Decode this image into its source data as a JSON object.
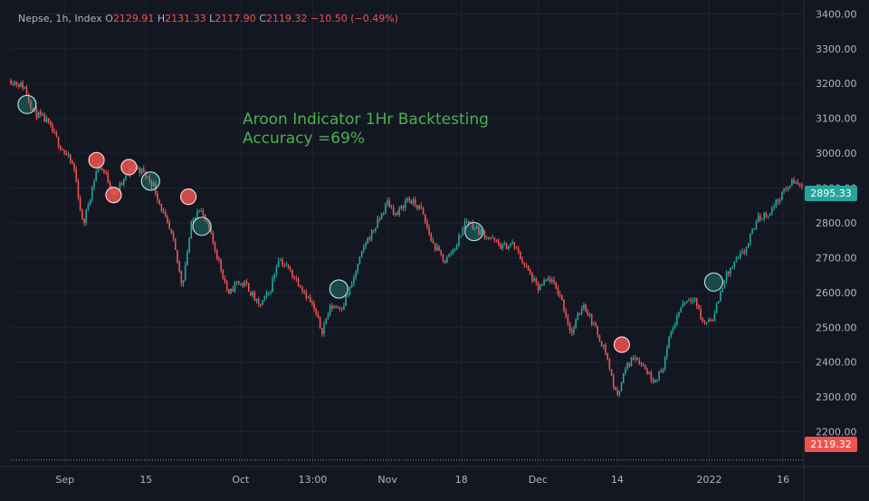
{
  "legend": {
    "symbol": "Nepse, 1h, Index",
    "open_label": "O",
    "open": "2129.91",
    "high_label": "H",
    "high": "2131.33",
    "low_label": "L",
    "low": "2117.90",
    "close_label": "C",
    "close": "2119.32",
    "change": "−10.50 (−0.49%)"
  },
  "annotation": {
    "line1": "Aroon Indicator 1Hr Backtesting",
    "line2": "Accuracy =69%"
  },
  "price_tags": {
    "last": "2895.33",
    "current": "2119.32"
  },
  "colors": {
    "background": "#131722",
    "grid": "#1f2330",
    "up": "#26a69a",
    "down": "#ef5350",
    "annotation": "#4caf50",
    "axis_text": "#b2b5be",
    "tag_green": "#26a69a",
    "tag_red": "#ef5350"
  },
  "chart_data": {
    "type": "candlestick",
    "ylim": [
      2100,
      3440
    ],
    "y_ticks": [
      2200,
      2300,
      2400,
      2500,
      2600,
      2700,
      2800,
      2900,
      3000,
      3100,
      3200,
      3300,
      3400
    ],
    "y_tick_labels": [
      "2200.00",
      "2300.00",
      "2400.00",
      "2500.00",
      "2600.00",
      "2700.00",
      "2800.00",
      "2900.00",
      "3000.00",
      "3100.00",
      "3200.00",
      "3300.00",
      "3400.00"
    ],
    "x_range": [
      0,
      880
    ],
    "x_ticks": [
      {
        "label": "Sep",
        "x": 60
      },
      {
        "label": "15",
        "x": 150
      },
      {
        "label": "Oct",
        "x": 255
      },
      {
        "label": "13:00",
        "x": 335
      },
      {
        "label": "Nov",
        "x": 418
      },
      {
        "label": "18",
        "x": 500
      },
      {
        "label": "Dec",
        "x": 585
      },
      {
        "label": "14",
        "x": 673
      },
      {
        "label": "2022",
        "x": 775
      },
      {
        "label": "16",
        "x": 857
      }
    ],
    "price_path": [
      [
        0,
        3210
      ],
      [
        15,
        3190
      ],
      [
        25,
        3120
      ],
      [
        40,
        3090
      ],
      [
        55,
        3020
      ],
      [
        70,
        2960
      ],
      [
        80,
        2790
      ],
      [
        90,
        2900
      ],
      [
        97,
        2970
      ],
      [
        105,
        2940
      ],
      [
        115,
        2880
      ],
      [
        125,
        2920
      ],
      [
        135,
        2960
      ],
      [
        145,
        2950
      ],
      [
        158,
        2910
      ],
      [
        170,
        2820
      ],
      [
        180,
        2750
      ],
      [
        190,
        2620
      ],
      [
        200,
        2790
      ],
      [
        208,
        2850
      ],
      [
        220,
        2780
      ],
      [
        232,
        2680
      ],
      [
        242,
        2590
      ],
      [
        250,
        2630
      ],
      [
        262,
        2620
      ],
      [
        275,
        2560
      ],
      [
        287,
        2600
      ],
      [
        297,
        2700
      ],
      [
        310,
        2660
      ],
      [
        322,
        2620
      ],
      [
        335,
        2560
      ],
      [
        345,
        2490
      ],
      [
        355,
        2560
      ],
      [
        368,
        2560
      ],
      [
        378,
        2620
      ],
      [
        393,
        2740
      ],
      [
        405,
        2790
      ],
      [
        418,
        2860
      ],
      [
        428,
        2820
      ],
      [
        440,
        2870
      ],
      [
        455,
        2840
      ],
      [
        468,
        2740
      ],
      [
        482,
        2690
      ],
      [
        495,
        2740
      ],
      [
        505,
        2810
      ],
      [
        518,
        2780
      ],
      [
        530,
        2760
      ],
      [
        545,
        2730
      ],
      [
        557,
        2740
      ],
      [
        570,
        2680
      ],
      [
        585,
        2610
      ],
      [
        598,
        2640
      ],
      [
        610,
        2590
      ],
      [
        622,
        2480
      ],
      [
        635,
        2570
      ],
      [
        648,
        2500
      ],
      [
        660,
        2430
      ],
      [
        672,
        2300
      ],
      [
        682,
        2380
      ],
      [
        692,
        2420
      ],
      [
        702,
        2390
      ],
      [
        712,
        2350
      ],
      [
        722,
        2370
      ],
      [
        732,
        2480
      ],
      [
        745,
        2570
      ],
      [
        758,
        2590
      ],
      [
        768,
        2510
      ],
      [
        780,
        2530
      ],
      [
        792,
        2640
      ],
      [
        805,
        2690
      ],
      [
        815,
        2720
      ],
      [
        828,
        2810
      ],
      [
        842,
        2830
      ],
      [
        855,
        2880
      ],
      [
        868,
        2920
      ],
      [
        880,
        2900
      ]
    ],
    "signals": [
      {
        "x": 18,
        "y": 3140,
        "type": "buy"
      },
      {
        "x": 95,
        "y": 2980,
        "type": "sell"
      },
      {
        "x": 114,
        "y": 2880,
        "type": "sell"
      },
      {
        "x": 131,
        "y": 2960,
        "type": "sell"
      },
      {
        "x": 155,
        "y": 2920,
        "type": "buy"
      },
      {
        "x": 197,
        "y": 2875,
        "type": "sell"
      },
      {
        "x": 212,
        "y": 2790,
        "type": "buy"
      },
      {
        "x": 364,
        "y": 2610,
        "type": "buy"
      },
      {
        "x": 514,
        "y": 2775,
        "type": "buy"
      },
      {
        "x": 678,
        "y": 2450,
        "type": "sell"
      },
      {
        "x": 780,
        "y": 2630,
        "type": "buy"
      }
    ]
  }
}
